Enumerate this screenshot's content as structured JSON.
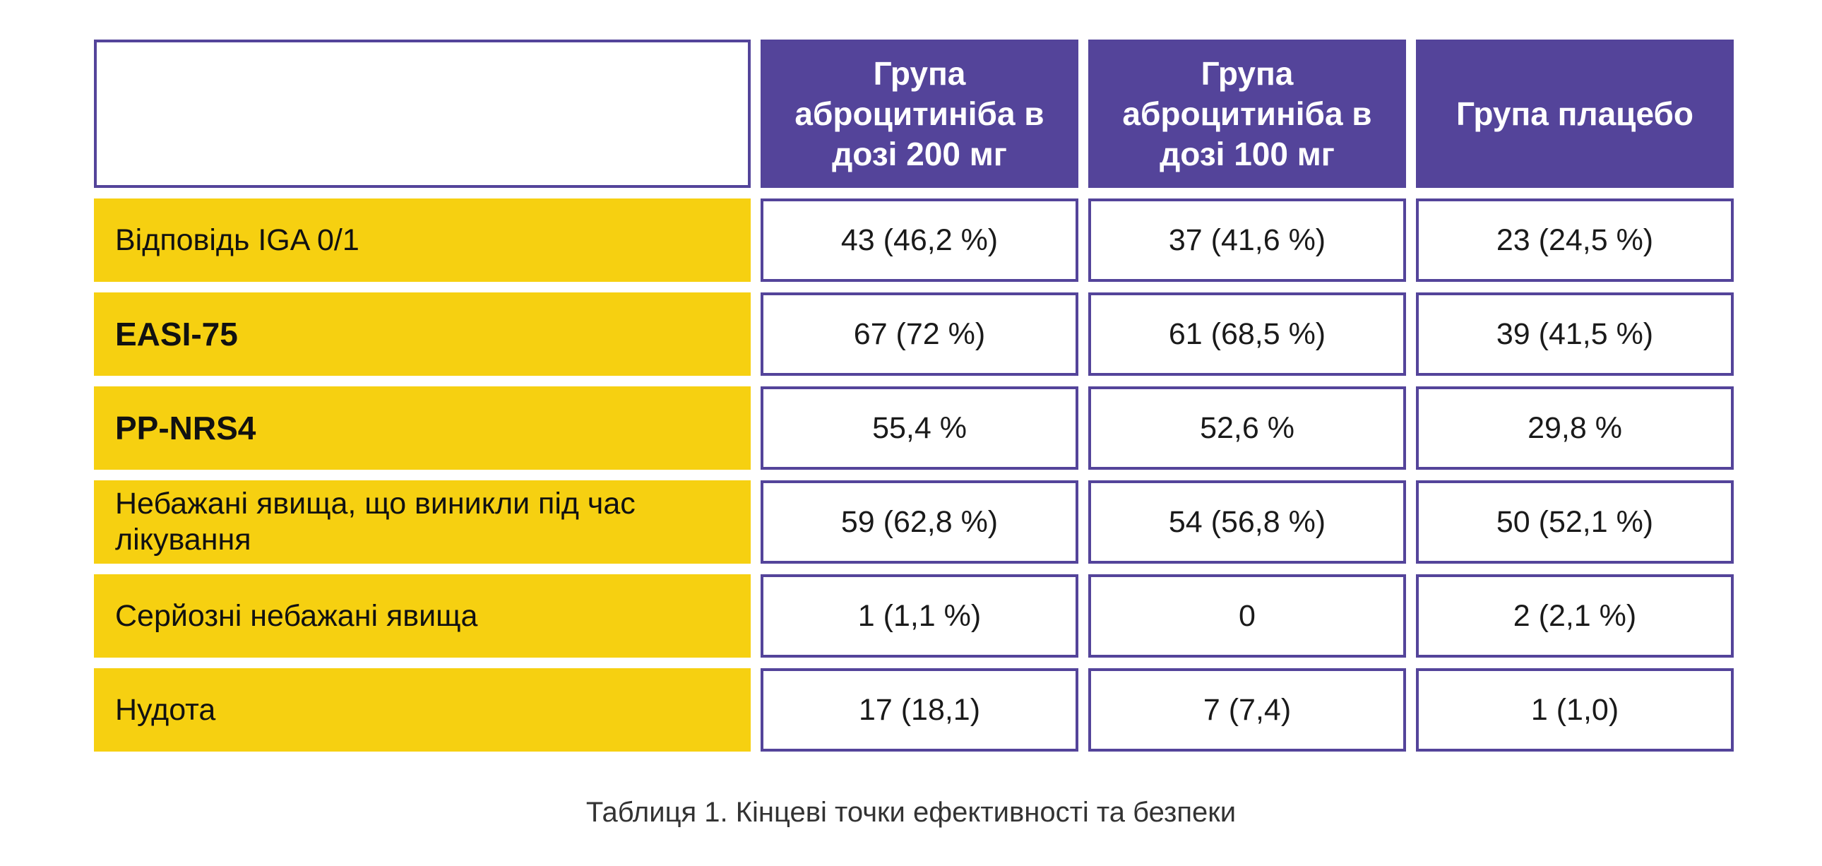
{
  "table": {
    "headers": [
      "Група аброцитиніба в дозі 200 мг",
      "Група аброцитиніба в дозі 100 мг",
      "Група плацебо"
    ],
    "rows": [
      {
        "label": "Відповідь IGA 0/1",
        "values": [
          "43 (46,2 %)",
          "37 (41,6 %)",
          "23 (24,5 %)"
        ]
      },
      {
        "label": "EASI-75",
        "values": [
          "67 (72 %)",
          "61 (68,5 %)",
          "39 (41,5 %)"
        ]
      },
      {
        "label": "PP-NRS4",
        "values": [
          "55,4 %",
          "52,6 %",
          "29,8 %"
        ]
      },
      {
        "label": "Небажані явища, що виникли під час лікування",
        "values": [
          "59 (62,8 %)",
          "54 (56,8 %)",
          "50 (52,1 %)"
        ]
      },
      {
        "label": "Серйозні небажані явища",
        "values": [
          "1 (1,1 %)",
          "0",
          "2 (2,1 %)"
        ]
      },
      {
        "label": "Нудота",
        "values": [
          "17 (18,1)",
          "7 (7,4)",
          "1 (1,0)"
        ]
      }
    ]
  },
  "caption": "Таблиця 1. Кінцеві точки ефективності та безпеки",
  "colors": {
    "header_bg": "#54449a",
    "label_bg": "#f6d011",
    "border": "#54449a"
  }
}
